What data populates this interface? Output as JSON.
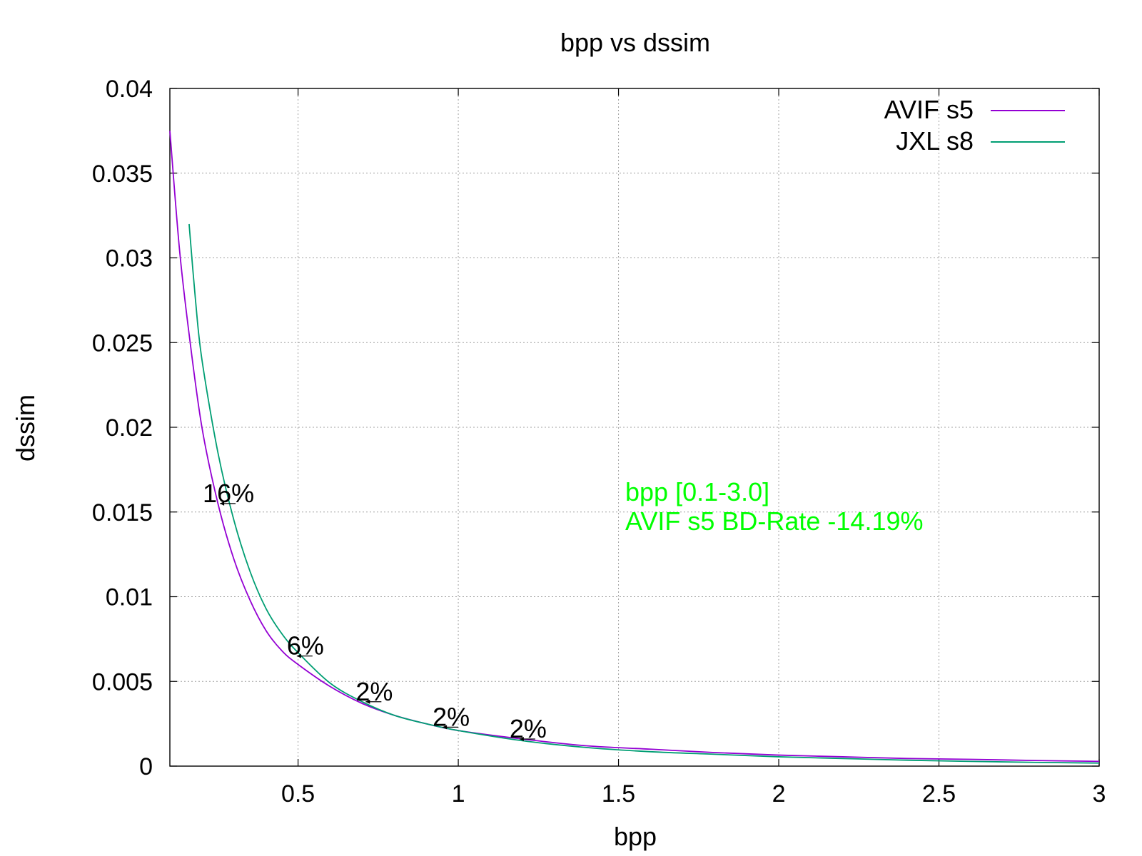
{
  "chart_data": {
    "type": "line",
    "title": "bpp vs dssim",
    "xlabel": "bpp",
    "ylabel": "dssim",
    "xlim": [
      0.1,
      3.0
    ],
    "ylim": [
      0,
      0.04
    ],
    "xticks": [
      0.5,
      1,
      1.5,
      2,
      2.5,
      3
    ],
    "xtick_labels": [
      "0.5",
      "1",
      "1.5",
      "2",
      "2.5",
      "3"
    ],
    "yticks": [
      0,
      0.005,
      0.01,
      0.015,
      0.02,
      0.025,
      0.03,
      0.035,
      0.04
    ],
    "ytick_labels": [
      "0",
      "0.005",
      "0.01",
      "0.015",
      "0.02",
      "0.025",
      "0.03",
      "0.035",
      "0.04"
    ],
    "grid": true,
    "legend_position": "top-right",
    "series": [
      {
        "name": "AVIF s5",
        "color": "#9400d3",
        "x": [
          0.1,
          0.13,
          0.16,
          0.2,
          0.25,
          0.3,
          0.35,
          0.4,
          0.45,
          0.5,
          0.6,
          0.7,
          0.8,
          0.9,
          1.0,
          1.2,
          1.4,
          1.6,
          1.8,
          2.0,
          2.2,
          2.4,
          2.6,
          2.8,
          3.0
        ],
        "y": [
          0.0375,
          0.0305,
          0.0255,
          0.02,
          0.0155,
          0.0122,
          0.0098,
          0.008,
          0.0068,
          0.006,
          0.0047,
          0.0037,
          0.003,
          0.0025,
          0.0021,
          0.0016,
          0.0012,
          0.001,
          0.0008,
          0.00065,
          0.00055,
          0.00045,
          0.0004,
          0.00033,
          0.00028
        ]
      },
      {
        "name": "JXL s8",
        "color": "#009e73",
        "x": [
          0.16,
          0.18,
          0.2,
          0.25,
          0.3,
          0.35,
          0.4,
          0.45,
          0.5,
          0.6,
          0.7,
          0.8,
          0.9,
          1.0,
          1.2,
          1.4,
          1.6,
          1.8,
          2.0,
          2.2,
          2.4,
          2.6,
          2.8,
          3.0
        ],
        "y": [
          0.032,
          0.0275,
          0.024,
          0.0185,
          0.0145,
          0.0115,
          0.0093,
          0.0078,
          0.0067,
          0.0049,
          0.0038,
          0.003,
          0.0025,
          0.0021,
          0.0015,
          0.0011,
          0.00085,
          0.0007,
          0.00055,
          0.00045,
          0.00035,
          0.00028,
          0.00022,
          0.00018
        ]
      }
    ],
    "annotations": [
      {
        "text": "16%",
        "x": 0.265,
        "y": 0.0155
      },
      {
        "text": "6%",
        "x": 0.505,
        "y": 0.0065
      },
      {
        "text": "2%",
        "x": 0.72,
        "y": 0.0038
      },
      {
        "text": "2%",
        "x": 0.96,
        "y": 0.0023
      },
      {
        "text": "2%",
        "x": 1.2,
        "y": 0.0016
      }
    ],
    "bd_rate_note": {
      "line1": "bpp [0.1-3.0]",
      "line2": "AVIF s5 BD-Rate -14.19%",
      "color": "#00ff00"
    }
  }
}
